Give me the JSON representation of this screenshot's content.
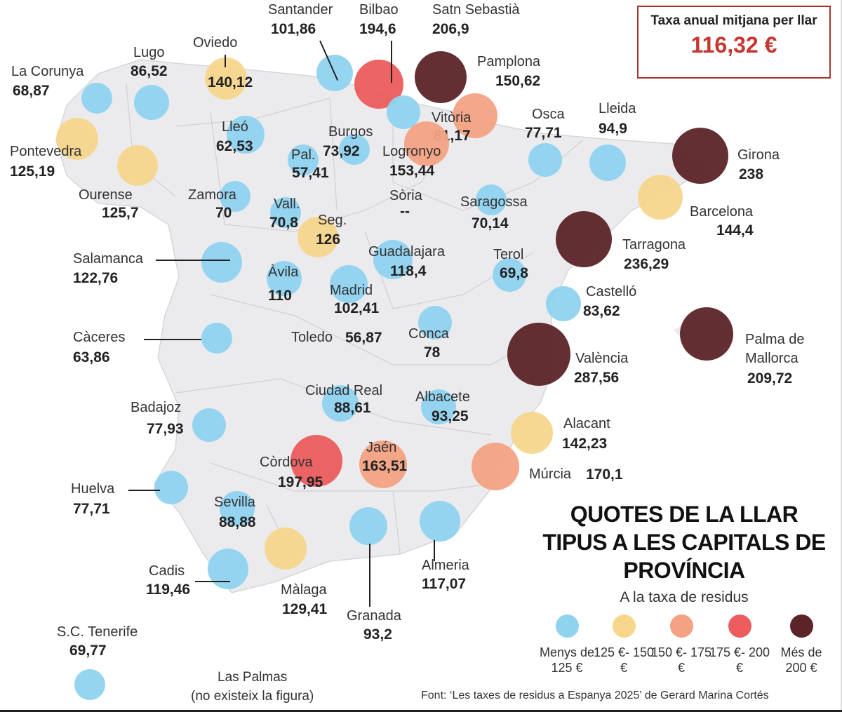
{
  "summary_box": {
    "label": "Taxa anual mitjana per llar",
    "value": "116,32 €"
  },
  "title": "QUOTES DE LA LLAR TIPUS A LES CAPITALS DE PROVÍNCIA",
  "subtitle": "A la taxa de residus",
  "legend": [
    {
      "label": "Menys de 125 €",
      "color": "#8fd3ef"
    },
    {
      "label": "125 €- 150 €",
      "color": "#f7d68c"
    },
    {
      "label": "150 €- 175 €",
      "color": "#f4a283"
    },
    {
      "label": "175 €- 200 €",
      "color": "#ec5c5c"
    },
    {
      "label": "Més de 200 €",
      "color": "#5b2427"
    }
  ],
  "source": "Font: ‘Les taxes de residus a Espanya 2025’ de Gerard Marina Cortés",
  "las_palmas": {
    "name": "Las Palmas",
    "note": "(no existeix la figura)"
  },
  "cities": [
    {
      "name": "La Corunya",
      "value": "68,87",
      "cat": 0
    },
    {
      "name": "Lugo",
      "value": "86,52",
      "cat": 0
    },
    {
      "name": "Oviedo",
      "value": "140,12",
      "cat": 1
    },
    {
      "name": "Santander",
      "value": "101,86",
      "cat": 0
    },
    {
      "name": "Bilbao",
      "value": "194,6",
      "cat": 3
    },
    {
      "name": "Satn Sebastià",
      "value": "206,9",
      "cat": 4
    },
    {
      "name": "Pamplona",
      "value": "150,62",
      "cat": 2
    },
    {
      "name": "Vitòria",
      "value": "81,17",
      "cat": 0
    },
    {
      "name": "Logronyo",
      "value": "153,44",
      "cat": 2
    },
    {
      "name": "Burgos",
      "value": "73,92",
      "cat": 0
    },
    {
      "name": "Pal.",
      "value": "57,41",
      "cat": 0
    },
    {
      "name": "Lleó",
      "value": "62,53",
      "cat": 0
    },
    {
      "name": "Pontevedra",
      "value": "125,19",
      "cat": 1
    },
    {
      "name": "Ourense",
      "value": "125,7",
      "cat": 1
    },
    {
      "name": "Zamora",
      "value": "70",
      "cat": 0
    },
    {
      "name": "Vall.",
      "value": "70,8",
      "cat": 0
    },
    {
      "name": "Seg.",
      "value": "126",
      "cat": 1
    },
    {
      "name": "Sòria",
      "value": "--",
      "cat": null
    },
    {
      "name": "Saragossa",
      "value": "70,14",
      "cat": 0
    },
    {
      "name": "Osca",
      "value": "77,71",
      "cat": 0
    },
    {
      "name": "Lleida",
      "value": "94,9",
      "cat": 0
    },
    {
      "name": "Girona",
      "value": "238",
      "cat": 4
    },
    {
      "name": "Barcelona",
      "value": "144,4",
      "cat": 1
    },
    {
      "name": "Tarragona",
      "value": "236,29",
      "cat": 4
    },
    {
      "name": "Salamanca",
      "value": "122,76",
      "cat": 0
    },
    {
      "name": "Àvila",
      "value": "110",
      "cat": 0
    },
    {
      "name": "Guadalajara",
      "value": "118,4",
      "cat": 0
    },
    {
      "name": "Terol",
      "value": "69,8",
      "cat": 0
    },
    {
      "name": "Madrid",
      "value": "102,41",
      "cat": 0
    },
    {
      "name": "Castelló",
      "value": "83,62",
      "cat": 0
    },
    {
      "name": "Càceres",
      "value": "63,86",
      "cat": 0
    },
    {
      "name": "Toledo",
      "value": "56,87",
      "cat": null
    },
    {
      "name": "Conca",
      "value": "78",
      "cat": 0
    },
    {
      "name": "València",
      "value": "287,56",
      "cat": 4
    },
    {
      "name": "Palma de Mallorca",
      "value": "209,72",
      "cat": 4
    },
    {
      "name": "Ciudad Real",
      "value": "88,61",
      "cat": 0
    },
    {
      "name": "Albacete",
      "value": "93,25",
      "cat": 0
    },
    {
      "name": "Badajoz",
      "value": "77,93",
      "cat": 0
    },
    {
      "name": "Alacant",
      "value": "142,23",
      "cat": 1
    },
    {
      "name": "Còrdova",
      "value": "197,95",
      "cat": 3
    },
    {
      "name": "Jaén",
      "value": "163,51",
      "cat": 2
    },
    {
      "name": "Múrcia",
      "value": "170,1",
      "cat": 2
    },
    {
      "name": "Huelva",
      "value": "77,71",
      "cat": 0
    },
    {
      "name": "Sevilla",
      "value": "88,88",
      "cat": 0
    },
    {
      "name": "Cadis",
      "value": "119,46",
      "cat": 0
    },
    {
      "name": "Màlaga",
      "value": "129,41",
      "cat": 1
    },
    {
      "name": "Granada",
      "value": "93,2",
      "cat": 0
    },
    {
      "name": "Almeria",
      "value": "117,07",
      "cat": 0
    },
    {
      "name": "S.C. Tenerife",
      "value": "69,77",
      "cat": 0
    }
  ]
}
